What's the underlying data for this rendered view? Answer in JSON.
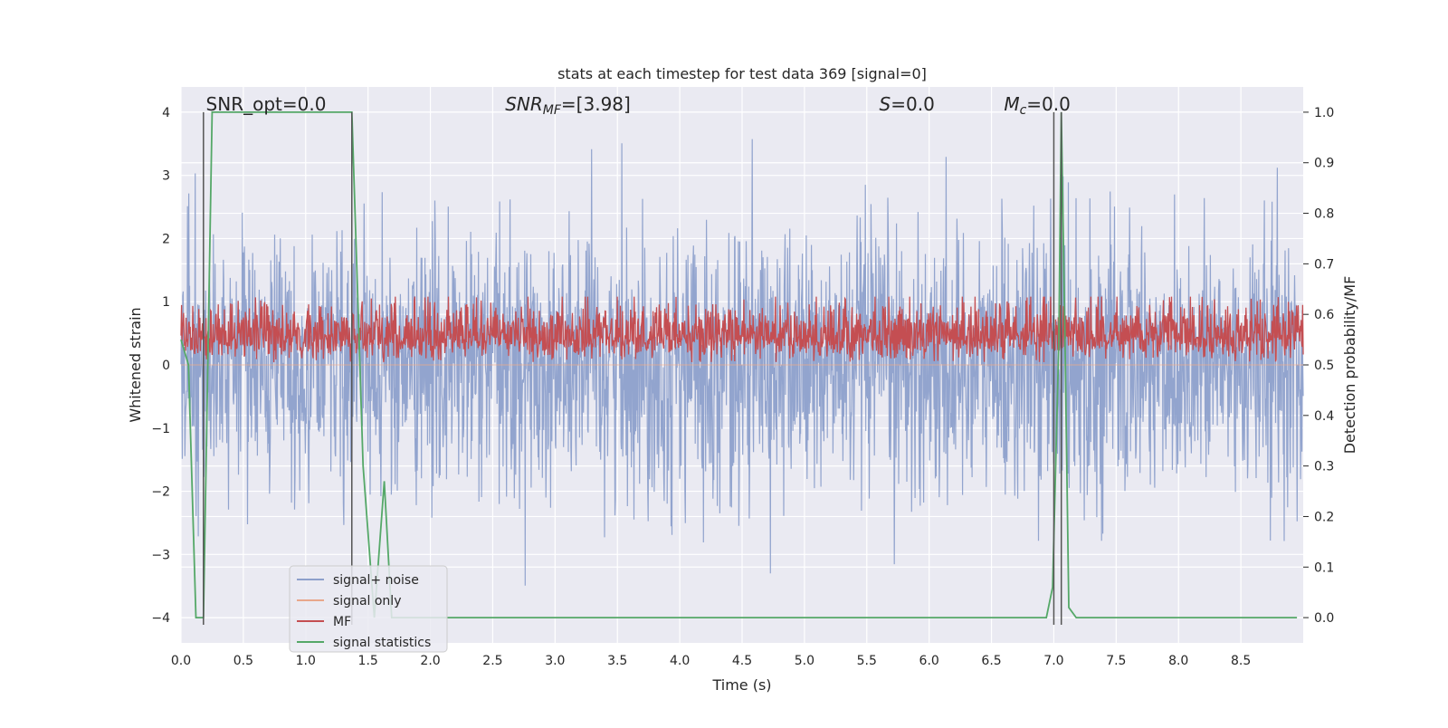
{
  "chart_data": {
    "type": "line",
    "title": "stats at each timestep for test data 369 [signal=0]",
    "xlabel": "Time (s)",
    "ylabel_left": "Whitened strain",
    "ylabel_right": "Detection probability/MF",
    "xlim": [
      0.0,
      9.0
    ],
    "ylim_left": [
      -4.4,
      4.4
    ],
    "ylim_right": [
      -0.05,
      1.05
    ],
    "xticks": [
      "0.0",
      "0.5",
      "1.0",
      "1.5",
      "2.0",
      "2.5",
      "3.0",
      "3.5",
      "4.0",
      "4.5",
      "5.0",
      "5.5",
      "6.0",
      "6.5",
      "7.0",
      "7.5",
      "8.0",
      "8.5"
    ],
    "yticks_left": [
      "−4",
      "−3",
      "−2",
      "−1",
      "0",
      "1",
      "2",
      "3",
      "4"
    ],
    "yticks_right": [
      "0.0",
      "0.1",
      "0.2",
      "0.3",
      "0.4",
      "0.5",
      "0.6",
      "0.7",
      "0.8",
      "0.9",
      "1.0"
    ],
    "grid": true,
    "legend_position": "lower-left",
    "annotations": [
      {
        "text": "SNR_opt=0.0",
        "x": 0.2
      },
      {
        "text": "SNR",
        "sub": "MF",
        "suffix": "=[3.98]",
        "x": 2.6,
        "italic": true
      },
      {
        "text": "S",
        "suffix": "=0.0",
        "x": 5.6,
        "italic": true
      },
      {
        "text": "M",
        "sub": "c",
        "suffix": "=0.0",
        "x": 6.6,
        "italic": true
      }
    ],
    "vertical_lines": [
      0.18,
      1.37,
      7.0,
      7.06
    ],
    "series": [
      {
        "name": "signal+ noise",
        "axis": "left",
        "color": "#8da0cb",
        "note_amplitude": 1.0
      },
      {
        "name": "signal only",
        "axis": "left",
        "color": "#e8a78b"
      },
      {
        "name": "MF",
        "axis": "right",
        "color": "#c44e52"
      },
      {
        "name": "signal statistics",
        "axis": "right",
        "color": "#55a868",
        "x": [
          0.0,
          0.06,
          0.12,
          0.18,
          0.25,
          1.37,
          1.46,
          1.55,
          1.63,
          1.69,
          6.94,
          6.99,
          7.04,
          7.06,
          7.09,
          7.12,
          7.18,
          8.95
        ],
        "y": [
          0.55,
          0.5,
          0.0,
          0.0,
          1.0,
          1.0,
          0.3,
          0.0,
          0.27,
          0.0,
          0.0,
          0.06,
          0.55,
          1.0,
          0.55,
          0.02,
          0.0,
          0.0
        ]
      }
    ]
  }
}
